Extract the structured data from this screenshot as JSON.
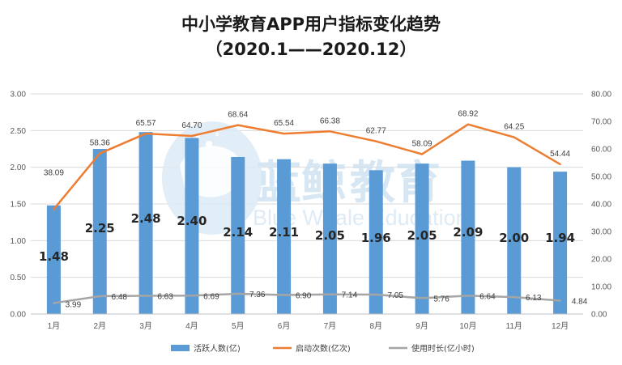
{
  "chart_data": {
    "type": "bar+line",
    "title": "中小学教育APP用户指标变化趋势",
    "subtitle": "（2020.1——2020.12）",
    "categories": [
      "1月",
      "2月",
      "3月",
      "4月",
      "5月",
      "6月",
      "7月",
      "8月",
      "9月",
      "10月",
      "11月",
      "12月"
    ],
    "series": [
      {
        "name": "活跃人数(亿)",
        "type": "bar",
        "axis": "left",
        "color": "#5b9bd5",
        "values": [
          1.48,
          2.25,
          2.48,
          2.4,
          2.14,
          2.11,
          2.05,
          1.96,
          2.05,
          2.09,
          2.0,
          1.94
        ],
        "labels": [
          "1.48",
          "2.25",
          "2.48",
          "2.40",
          "2.14",
          "2.11",
          "2.05",
          "1.96",
          "2.05",
          "2.09",
          "2.00",
          "1.94"
        ]
      },
      {
        "name": "启动次数(亿次)",
        "type": "line",
        "axis": "right",
        "color": "#ed7d31",
        "values": [
          38.09,
          58.36,
          65.57,
          64.7,
          68.64,
          65.54,
          66.38,
          62.77,
          58.09,
          68.92,
          64.25,
          54.44
        ],
        "labels": [
          "38.09",
          "58.36",
          "65.57",
          "64.70",
          "68.64",
          "65.54",
          "66.38",
          "62.77",
          "58.09",
          "68.92",
          "64.25",
          "54.44"
        ]
      },
      {
        "name": "使用时长(亿小时)",
        "type": "line",
        "axis": "right",
        "color": "#a5a5a5",
        "values": [
          3.99,
          6.48,
          6.63,
          6.69,
          7.36,
          6.9,
          7.14,
          7.05,
          5.76,
          6.64,
          6.13,
          4.84
        ],
        "labels": [
          "3.99",
          "6.48",
          "6.63",
          "6.69",
          "7.36",
          "6.90",
          "7.14",
          "7.05",
          "5.76",
          "6.64",
          "6.13",
          "4.84"
        ]
      }
    ],
    "y_left": {
      "min": 0,
      "max": 3,
      "ticks": [
        "0.00",
        "0.50",
        "1.00",
        "1.50",
        "2.00",
        "2.50",
        "3.00"
      ]
    },
    "y_right": {
      "min": 0,
      "max": 80,
      "ticks": [
        "0.00",
        "10.00",
        "20.00",
        "30.00",
        "40.00",
        "50.00",
        "60.00",
        "70.00",
        "80.00"
      ]
    },
    "grid": true,
    "legend_position": "bottom"
  },
  "watermark": {
    "name": "蓝鲸教育",
    "parts": [
      "蓝鲸",
      "教育"
    ],
    "english": "Blue Whale Education"
  },
  "colors": {
    "grid": "#d9d9d9",
    "axis_text": "#595959"
  }
}
